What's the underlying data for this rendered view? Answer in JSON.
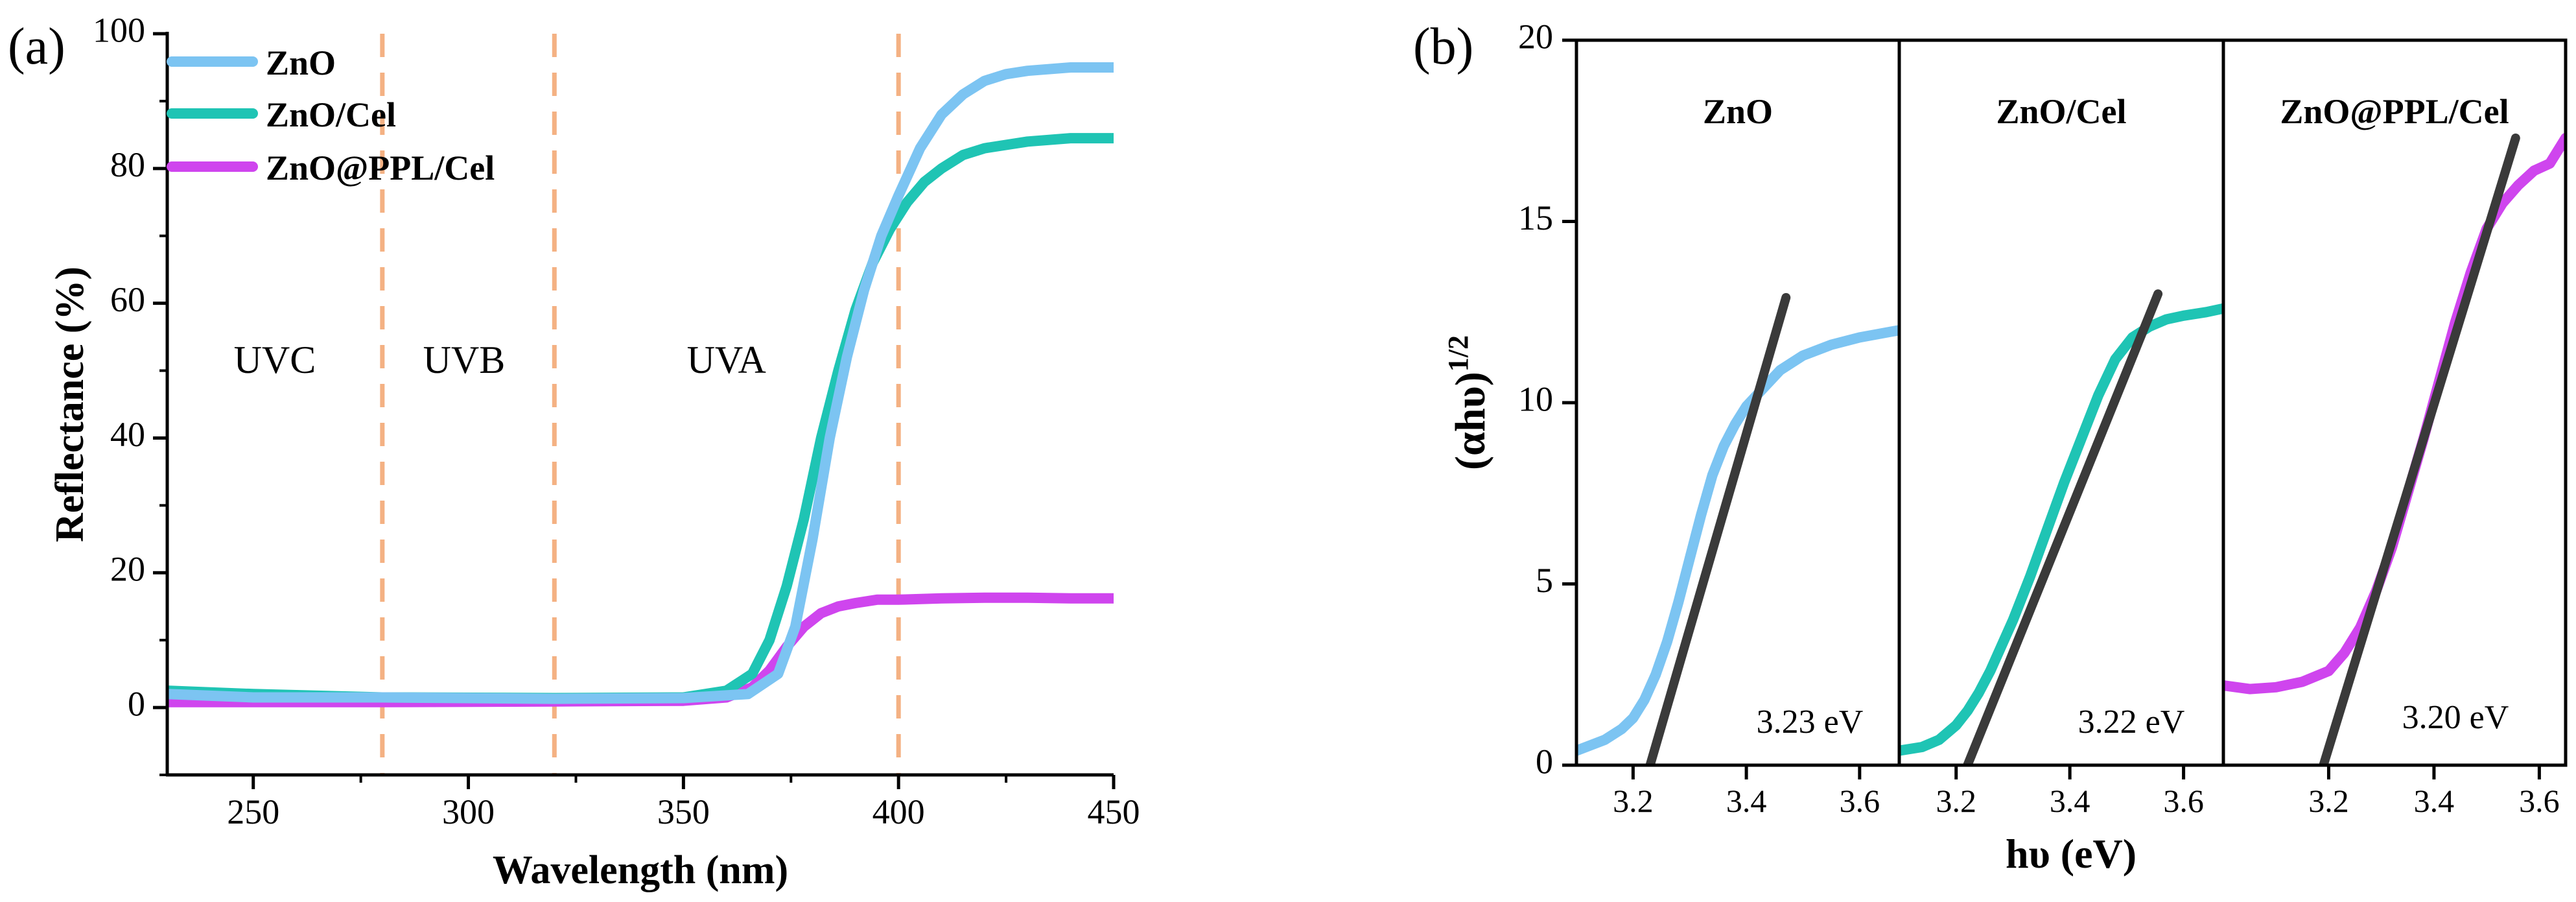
{
  "chart_data": [
    {
      "type": "line",
      "panel_label": "(a)",
      "title": "",
      "xlabel": "Wavelength (nm)",
      "ylabel": "Reflectance (%)",
      "xlim": [
        230,
        450
      ],
      "ylim": [
        -10,
        100
      ],
      "xticks": [
        250,
        300,
        350,
        400,
        450
      ],
      "xtick_labels": [
        "250",
        "300",
        "350",
        "400",
        "450"
      ],
      "yticks": [
        0,
        20,
        40,
        60,
        80,
        100
      ],
      "ytick_labels": [
        "0",
        "20",
        "40",
        "60",
        "80",
        "100"
      ],
      "grid": false,
      "legend_position": "top-left",
      "region_dividers_nm": [
        280,
        320,
        400
      ],
      "divider_color": "#f4b183",
      "region_labels": [
        {
          "text": "UVC",
          "x": 255,
          "y": 51
        },
        {
          "text": "UVB",
          "x": 299,
          "y": 51
        },
        {
          "text": "UVA",
          "x": 360,
          "y": 51
        }
      ],
      "series": [
        {
          "name": "ZnO",
          "color": "#7cc4f2",
          "x": [
            230,
            250,
            280,
            320,
            350,
            365,
            372,
            376,
            380,
            384,
            388,
            392,
            396,
            400,
            405,
            410,
            415,
            420,
            425,
            430,
            440,
            450
          ],
          "y": [
            2.0,
            1.5,
            1.5,
            1.3,
            1.4,
            2.0,
            5.0,
            12,
            25,
            40,
            52,
            62,
            70,
            76,
            83,
            88,
            91,
            93,
            94,
            94.5,
            95,
            95
          ]
        },
        {
          "name": "ZnO/Cel",
          "color": "#1fc4b4",
          "x": [
            230,
            250,
            280,
            320,
            350,
            360,
            366,
            370,
            374,
            378,
            382,
            386,
            390,
            394,
            398,
            402,
            406,
            410,
            415,
            420,
            430,
            440,
            450
          ],
          "y": [
            2.5,
            2.0,
            1.5,
            1.4,
            1.5,
            2.5,
            5,
            10,
            18,
            28,
            40,
            50,
            59,
            66,
            71,
            75,
            78,
            80,
            82,
            83,
            84,
            84.5,
            84.5
          ]
        },
        {
          "name": "ZnO@PPL/Cel",
          "color": "#cf45ee",
          "x": [
            230,
            250,
            280,
            320,
            350,
            360,
            366,
            370,
            374,
            378,
            382,
            386,
            390,
            395,
            400,
            410,
            420,
            430,
            440,
            450
          ],
          "y": [
            0.8,
            0.8,
            0.8,
            0.9,
            1.0,
            1.5,
            3,
            5.5,
            9,
            12,
            14,
            15,
            15.5,
            16,
            16,
            16.2,
            16.3,
            16.3,
            16.2,
            16.2
          ]
        }
      ]
    },
    {
      "type": "line",
      "panel_label": "(b)",
      "title": "",
      "xlabel": "hυ (eV)",
      "ylabel_base": "(αhυ)",
      "ylabel_sup": "1/2",
      "ylim": [
        0,
        20
      ],
      "yticks": [
        0,
        5,
        10,
        15,
        20
      ],
      "ytick_labels": [
        "0",
        "5",
        "10",
        "15",
        "20"
      ],
      "grid": false,
      "fit_line_color": "#3a3a3a",
      "panels": [
        {
          "label": "ZnO",
          "color": "#7cc4f2",
          "xlim": [
            3.1,
            3.67
          ],
          "xticks": [
            3.2,
            3.4,
            3.6
          ],
          "xtick_labels": [
            "3.2",
            "3.4",
            "3.6"
          ],
          "bandgap": "3.23 eV",
          "x": [
            3.1,
            3.15,
            3.18,
            3.2,
            3.22,
            3.24,
            3.26,
            3.28,
            3.3,
            3.32,
            3.34,
            3.36,
            3.38,
            3.4,
            3.43,
            3.46,
            3.5,
            3.55,
            3.6,
            3.67
          ],
          "y": [
            0.4,
            0.7,
            1.0,
            1.3,
            1.8,
            2.5,
            3.4,
            4.5,
            5.7,
            6.9,
            8.0,
            8.8,
            9.4,
            9.9,
            10.4,
            10.9,
            11.3,
            11.6,
            11.8,
            12.0
          ],
          "fit": {
            "x": [
              3.23,
              3.47
            ],
            "y": [
              0,
              12.9
            ]
          }
        },
        {
          "label": "ZnO/Cel",
          "color": "#1fc4b4",
          "xlim": [
            3.1,
            3.67
          ],
          "xticks": [
            3.2,
            3.4,
            3.6
          ],
          "xtick_labels": [
            "3.2",
            "3.4",
            "3.6"
          ],
          "bandgap": "3.22 eV",
          "x": [
            3.1,
            3.14,
            3.17,
            3.2,
            3.22,
            3.24,
            3.26,
            3.28,
            3.3,
            3.33,
            3.36,
            3.39,
            3.42,
            3.45,
            3.48,
            3.51,
            3.54,
            3.57,
            3.6,
            3.64,
            3.67
          ],
          "y": [
            0.4,
            0.5,
            0.7,
            1.1,
            1.5,
            2.0,
            2.6,
            3.3,
            4.0,
            5.2,
            6.5,
            7.8,
            9.0,
            10.2,
            11.2,
            11.8,
            12.1,
            12.3,
            12.4,
            12.5,
            12.6
          ],
          "fit": {
            "x": [
              3.22,
              3.555
            ],
            "y": [
              0,
              13.0
            ]
          }
        },
        {
          "label": "ZnO@PPL/Cel",
          "color": "#cf45ee",
          "xlim": [
            3.0,
            3.65
          ],
          "xticks": [
            3.2,
            3.4,
            3.6
          ],
          "xtick_labels": [
            "3.2",
            "3.4",
            "3.6"
          ],
          "bandgap": "3.20 eV",
          "x": [
            3.0,
            3.05,
            3.1,
            3.15,
            3.2,
            3.23,
            3.26,
            3.29,
            3.32,
            3.35,
            3.38,
            3.41,
            3.44,
            3.47,
            3.5,
            3.53,
            3.56,
            3.59,
            3.62,
            3.65
          ],
          "y": [
            2.2,
            2.1,
            2.15,
            2.3,
            2.6,
            3.1,
            3.8,
            4.8,
            6.0,
            7.5,
            9.0,
            10.6,
            12.2,
            13.6,
            14.8,
            15.5,
            16.0,
            16.4,
            16.6,
            17.3
          ],
          "fit": {
            "x": [
              3.19,
              3.555
            ],
            "y": [
              0,
              17.3
            ]
          }
        }
      ]
    }
  ]
}
